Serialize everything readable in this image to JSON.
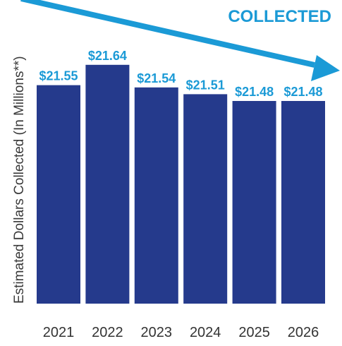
{
  "chart_data": {
    "type": "bar",
    "title": "",
    "headline": "COLLECTED",
    "ylabel": "Estimated Dollars Collected (In Millions**)",
    "xlabel": "",
    "categories": [
      "2021",
      "2022",
      "2023",
      "2024",
      "2025",
      "2026"
    ],
    "values": [
      21.55,
      21.64,
      21.54,
      21.51,
      21.48,
      21.48
    ],
    "value_labels": [
      "$21.55",
      "$21.64",
      "$21.54",
      "$21.51",
      "$21.48",
      "$21.48"
    ],
    "trend_arrow": "down",
    "grid": false,
    "legend": "none",
    "colors": {
      "bar": "#253a8c",
      "accent": "#1b9ad6",
      "tick_text": "#333333",
      "axis_text": "#3a3a3a"
    }
  }
}
